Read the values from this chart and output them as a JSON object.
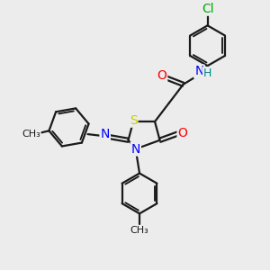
{
  "bg_color": "#ececec",
  "atom_colors": {
    "C": "#1a1a1a",
    "N": "#0000ff",
    "O": "#ff0000",
    "S": "#cccc00",
    "Cl": "#00aa00",
    "H": "#008888"
  },
  "bond_color": "#1a1a1a",
  "bond_width": 1.6,
  "font_size_atom": 10
}
